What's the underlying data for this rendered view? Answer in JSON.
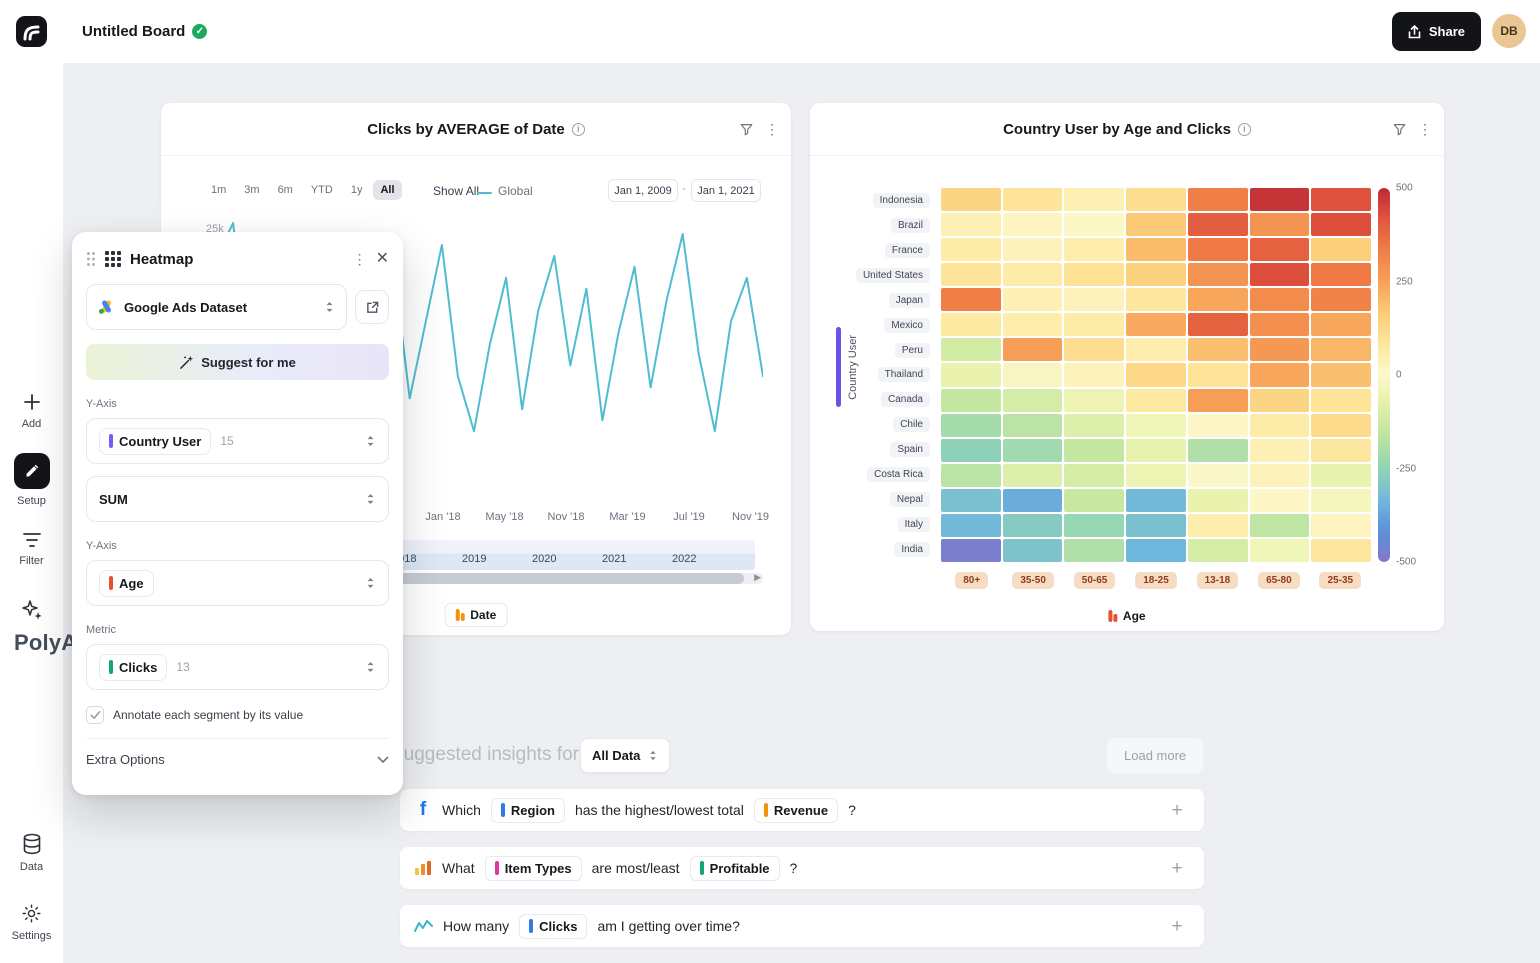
{
  "topbar": {
    "title": "Untitled Board",
    "share_label": "Share",
    "avatar_initials": "DB"
  },
  "sidebar": {
    "add_label": "Add",
    "setup_label": "Setup",
    "filter_label": "Filter",
    "data_label": "Data",
    "settings_label": "Settings",
    "watermark": "PolyA"
  },
  "line_card": {
    "title": "Clicks by AVERAGE of Date",
    "range_buttons": [
      "1m",
      "3m",
      "6m",
      "YTD",
      "1y",
      "All"
    ],
    "active_range": "All",
    "show_all_label": "Show All",
    "legend_label": "Global",
    "legend_color": "#4fbdd1",
    "date_from": "Jan 1, 2009",
    "date_sep": "-",
    "date_to": "Jan 1, 2021",
    "y_tick_label": "25k",
    "slider_years": [
      "2018",
      "2019",
      "2020",
      "2021",
      "2022"
    ],
    "legend_badge": "Date",
    "legend_badge_color": "#f2930d"
  },
  "heatmap_card": {
    "title": "Country User by Age and Clicks",
    "y_axis_label": "Country User",
    "legend_badge": "Age",
    "legend_badge_color": "#e8512e"
  },
  "panel": {
    "title": "Heatmap",
    "dataset_select": "Google Ads Dataset",
    "suggest_button": "Suggest for me",
    "y_axis_label_1": "Y-Axis",
    "field_country": {
      "label": "Country User",
      "count": "15",
      "color": "#7a5af8"
    },
    "field_agg": {
      "label": "SUM"
    },
    "y_axis_label_2": "Y-Axis",
    "field_age": {
      "label": "Age",
      "color": "#e8512e"
    },
    "metric_label": "Metric",
    "field_metric": {
      "label": "Clicks",
      "count": "13",
      "color": "#12a579"
    },
    "annotate_checkbox": "Annotate each segment by its value",
    "extra_options_label": "Extra Options"
  },
  "insights": {
    "header": "Suggested insights for",
    "dataset_dropdown": "All Data",
    "load_more_label": "Load more",
    "rows": [
      {
        "icon": "facebook-icon",
        "parts": [
          {
            "type": "text",
            "text": "Which"
          },
          {
            "type": "chip",
            "label": "Region",
            "color": "#2f7ae5"
          },
          {
            "type": "text",
            "text": "has the highest/lowest total"
          },
          {
            "type": "chip",
            "label": "Revenue",
            "color": "#f2930d"
          },
          {
            "type": "text",
            "text": "?"
          }
        ]
      },
      {
        "icon": "bar-chart-icon",
        "parts": [
          {
            "type": "text",
            "text": "What"
          },
          {
            "type": "chip",
            "label": "Item Types",
            "color": "#e0369f"
          },
          {
            "type": "text",
            "text": "are most/least"
          },
          {
            "type": "chip",
            "label": "Profitable",
            "color": "#12a579"
          },
          {
            "type": "text",
            "text": "?"
          }
        ]
      },
      {
        "icon": "line-chart-icon",
        "parts": [
          {
            "type": "text",
            "text": "How many"
          },
          {
            "type": "chip",
            "label": "Clicks",
            "color": "#2f7ae5"
          },
          {
            "type": "text",
            "text": "am I getting over time?"
          }
        ]
      }
    ]
  },
  "chart_data": [
    {
      "type": "line",
      "title": "Clicks by AVERAGE of Date",
      "series": [
        {
          "name": "Global",
          "color": "#4fbdd1",
          "values": [
            17,
            22,
            25,
            13,
            20,
            7,
            15,
            22,
            10,
            18,
            5,
            13,
            21,
            9,
            16,
            23,
            11,
            6,
            14,
            20,
            8,
            17,
            22,
            12,
            19,
            7,
            15,
            21,
            10,
            18,
            24,
            13,
            6,
            16,
            20,
            11
          ]
        }
      ],
      "x_ticks": [
        "Jan '18",
        "May '18",
        "Nov '18",
        "Mar '19",
        "Jul '19",
        "Nov '19"
      ],
      "ylim": [
        0,
        25
      ],
      "y_unit": "k",
      "visible_y_tick": "25k",
      "date_filter": [
        "Jan 1, 2009",
        "Jan 1, 2021"
      ],
      "legend_position": "top"
    },
    {
      "type": "heatmap",
      "title": "Country User by Age and Clicks",
      "rows": [
        "Indonesia",
        "Brazil",
        "France",
        "United States",
        "Japan",
        "Mexico",
        "Peru",
        "Thailand",
        "Canada",
        "Chile",
        "Spain",
        "Costa Rica",
        "Nepal",
        "Italy",
        "India"
      ],
      "columns": [
        "80+",
        "35-50",
        "50-65",
        "18-25",
        "13-18",
        "65-80",
        "25-35"
      ],
      "values": [
        [
          140,
          90,
          40,
          110,
          330,
          480,
          420
        ],
        [
          40,
          20,
          10,
          170,
          400,
          280,
          430
        ],
        [
          60,
          30,
          50,
          200,
          340,
          390,
          160
        ],
        [
          90,
          60,
          100,
          150,
          280,
          430,
          340
        ],
        [
          330,
          40,
          30,
          80,
          240,
          300,
          320
        ],
        [
          70,
          50,
          60,
          230,
          390,
          290,
          240
        ],
        [
          -120,
          260,
          110,
          50,
          190,
          270,
          210
        ],
        [
          -60,
          -20,
          30,
          130,
          90,
          240,
          190
        ],
        [
          -150,
          -110,
          -50,
          70,
          260,
          140,
          90
        ],
        [
          -210,
          -170,
          -90,
          -40,
          10,
          60,
          120
        ],
        [
          -260,
          -220,
          -150,
          -70,
          -190,
          40,
          80
        ],
        [
          -170,
          -90,
          -110,
          -50,
          -10,
          30,
          -70
        ],
        [
          -310,
          -360,
          -140,
          -330,
          -60,
          10,
          -30
        ],
        [
          -330,
          -280,
          -240,
          -310,
          50,
          -160,
          20
        ],
        [
          -480,
          -300,
          -190,
          -340,
          -110,
          -40,
          80
        ]
      ],
      "scale": {
        "min": -500,
        "max": 500,
        "ticks": [
          500,
          250,
          0,
          -250,
          -500
        ]
      },
      "xlabel": "Age",
      "ylabel": "Country User"
    }
  ]
}
